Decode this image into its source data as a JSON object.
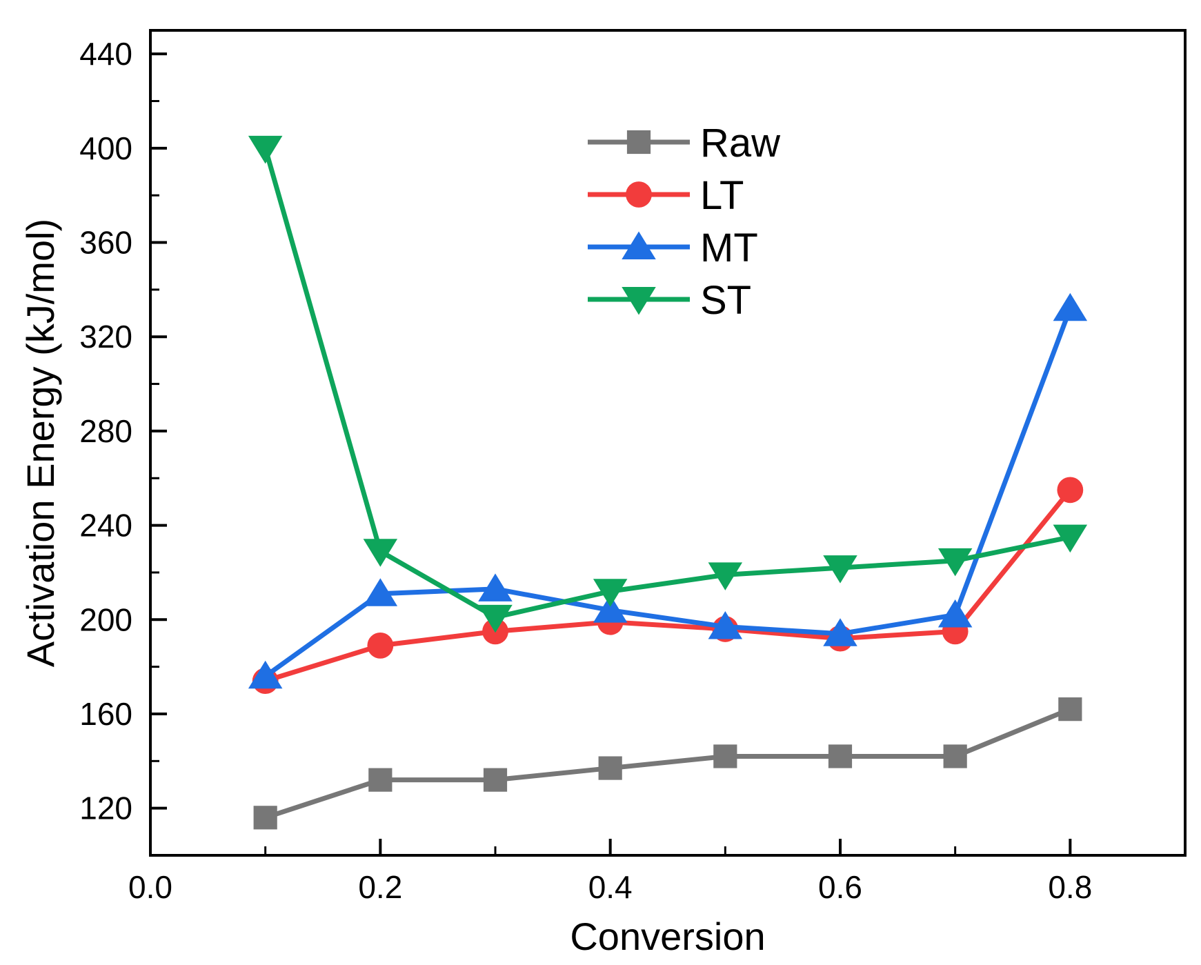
{
  "chart_data": {
    "type": "line",
    "title": "",
    "xlabel": "Conversion",
    "ylabel": "Activation Energy (kJ/mol)",
    "xlim": [
      0.0,
      0.9
    ],
    "ylim": [
      100,
      450
    ],
    "x_ticks": [
      0.0,
      0.2,
      0.4,
      0.6,
      0.8
    ],
    "x_tick_labels": [
      "0.0",
      "0.2",
      "0.4",
      "0.6",
      "0.8"
    ],
    "y_ticks": [
      120,
      160,
      200,
      240,
      280,
      320,
      360,
      400,
      440
    ],
    "y_tick_labels": [
      "120",
      "160",
      "200",
      "240",
      "280",
      "320",
      "360",
      "400",
      "440"
    ],
    "grid": false,
    "legend_position": "top-center",
    "x": [
      0.1,
      0.2,
      0.3,
      0.4,
      0.5,
      0.6,
      0.7,
      0.8
    ],
    "series": [
      {
        "name": "Raw",
        "color": "#777777",
        "marker": "square",
        "values": [
          116,
          132,
          132,
          137,
          142,
          142,
          142,
          162
        ]
      },
      {
        "name": "LT",
        "color": "#f23c3c",
        "marker": "circle",
        "values": [
          174,
          189,
          195,
          199,
          196,
          192,
          195,
          255
        ]
      },
      {
        "name": "MT",
        "color": "#1f6fe3",
        "marker": "triangle-up",
        "values": [
          176,
          211,
          213,
          204,
          197,
          194,
          202,
          332
        ]
      },
      {
        "name": "ST",
        "color": "#0ea55b",
        "marker": "triangle-down",
        "values": [
          400,
          229,
          201,
          212,
          219,
          222,
          225,
          235
        ]
      }
    ]
  }
}
